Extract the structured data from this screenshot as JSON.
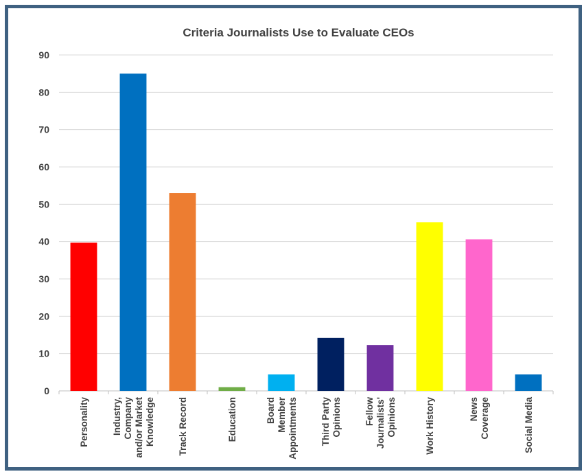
{
  "chart_data": {
    "type": "bar",
    "title": "Criteria Journalists Use to Evaluate CEOs",
    "xlabel": "",
    "ylabel": "",
    "ylim": [
      0,
      90
    ],
    "yticks": [
      0,
      10,
      20,
      30,
      40,
      50,
      60,
      70,
      80,
      90
    ],
    "grid": true,
    "legend": "none",
    "categories": [
      [
        "Personality"
      ],
      [
        "Industry,",
        "Company",
        "and/or Market",
        "Knowledge"
      ],
      [
        "Track Record"
      ],
      [
        "Education"
      ],
      [
        "Board",
        "Member",
        "Appointments"
      ],
      [
        "Third Party",
        "Opinions"
      ],
      [
        "Fellow",
        "Journalists'",
        "Opinions"
      ],
      [
        "Work History"
      ],
      [
        "News",
        "Coverage"
      ],
      [
        "Social Media"
      ]
    ],
    "values": [
      39.7,
      85,
      53,
      1,
      4.4,
      14.2,
      12.3,
      45.2,
      40.6,
      4.4
    ],
    "colors": [
      "#ff0000",
      "#0070c0",
      "#ed7d31",
      "#70ad47",
      "#00b0f0",
      "#002060",
      "#7030a0",
      "#ffff00",
      "#ff66cc",
      "#0070c0"
    ]
  }
}
